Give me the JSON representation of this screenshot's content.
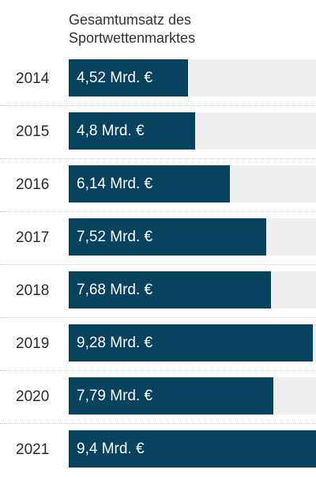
{
  "chart_data": {
    "type": "bar",
    "orientation": "horizontal",
    "title": "Gesamtumsatz des Sportwettenmarktes",
    "categories": [
      "2014",
      "2015",
      "2016",
      "2017",
      "2018",
      "2019",
      "2020",
      "2021"
    ],
    "values": [
      4.52,
      4.8,
      6.14,
      7.52,
      7.68,
      9.28,
      7.79,
      9.4
    ],
    "labels": [
      "4,52 Mrd. €",
      "4,8 Mrd. €",
      "6,14 Mrd. €",
      "7,52 Mrd. €",
      "7,68 Mrd. €",
      "9,28 Mrd. €",
      "7,79 Mrd. €",
      "9,4 Mrd. €"
    ],
    "xlim": [
      0,
      9.4
    ],
    "grid": false,
    "colors": {
      "bar": "#07435f",
      "track": "#efefef",
      "label": "#ffffff"
    }
  }
}
